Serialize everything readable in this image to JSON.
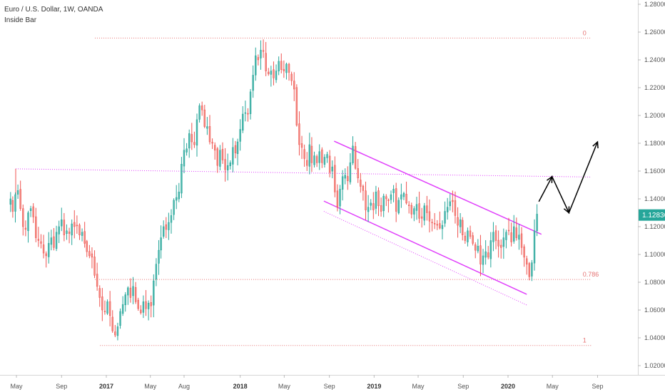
{
  "legend": {
    "title": "Euro / U.S. Dollar, 1W, OANDA",
    "indicator": "Inside Bar"
  },
  "colors": {
    "up": "#26a69a",
    "down": "#ef5350",
    "up_body": "#4db6ac",
    "down_body": "#f28b82",
    "channel": "#e040fb",
    "fib": "#e57373",
    "resistance": "#e040fb",
    "projection": "#000000",
    "price_tag": "#26a69a"
  },
  "chart_data": {
    "type": "candlestick",
    "title": "Euro / U.S. Dollar, 1W, OANDA",
    "x_range": [
      "2016-04-15",
      "2020-10-15"
    ],
    "y_range": [
      1.01,
      1.28
    ],
    "y_ticks": [
      "1.28000",
      "1.26000",
      "1.24000",
      "1.22000",
      "1.20000",
      "1.18000",
      "1.16000",
      "1.14000",
      "1.12000",
      "1.10000",
      "1.08000",
      "1.06000",
      "1.04000",
      "1.02000"
    ],
    "x_ticks": [
      {
        "date": "2016-05-01",
        "label": "May",
        "bold": false
      },
      {
        "date": "2016-09-01",
        "label": "Sep",
        "bold": false
      },
      {
        "date": "2017-01-01",
        "label": "2017",
        "bold": true
      },
      {
        "date": "2017-05-01",
        "label": "May",
        "bold": false
      },
      {
        "date": "2017-08-01",
        "label": "Aug",
        "bold": false
      },
      {
        "date": "2018-01-01",
        "label": "2018",
        "bold": true
      },
      {
        "date": "2018-05-01",
        "label": "May",
        "bold": false
      },
      {
        "date": "2018-09-01",
        "label": "Sep",
        "bold": false
      },
      {
        "date": "2019-01-01",
        "label": "2019",
        "bold": true
      },
      {
        "date": "2019-05-01",
        "label": "May",
        "bold": false
      },
      {
        "date": "2019-09-01",
        "label": "Sep",
        "bold": false
      },
      {
        "date": "2020-01-01",
        "label": "2020",
        "bold": true
      },
      {
        "date": "2020-05-01",
        "label": "May",
        "bold": false
      },
      {
        "date": "2020-09-01",
        "label": "Sep",
        "bold": false
      }
    ],
    "last_price": "1.12836",
    "last_price_value": 1.12836,
    "weekly_close_path": {
      "start_date": "2016-04-15",
      "end_date": "2020-03-20",
      "closes": [
        1.14,
        1.131,
        1.143,
        1.146,
        1.133,
        1.12,
        1.118,
        1.13,
        1.133,
        1.127,
        1.112,
        1.11,
        1.108,
        1.101,
        1.099,
        1.108,
        1.112,
        1.105,
        1.116,
        1.12,
        1.125,
        1.114,
        1.117,
        1.115,
        1.122,
        1.12,
        1.121,
        1.114,
        1.116,
        1.108,
        1.102,
        1.099,
        1.098,
        1.085,
        1.077,
        1.069,
        1.06,
        1.059,
        1.066,
        1.056,
        1.045,
        1.042,
        1.048,
        1.059,
        1.064,
        1.071,
        1.076,
        1.069,
        1.077,
        1.066,
        1.061,
        1.058,
        1.066,
        1.061,
        1.065,
        1.063,
        1.081,
        1.093,
        1.103,
        1.112,
        1.12,
        1.118,
        1.123,
        1.128,
        1.139,
        1.141,
        1.145,
        1.165,
        1.175,
        1.176,
        1.187,
        1.181,
        1.179,
        1.197,
        1.207,
        1.204,
        1.192,
        1.192,
        1.181,
        1.18,
        1.175,
        1.164,
        1.175,
        1.168,
        1.161,
        1.164,
        1.166,
        1.177,
        1.173,
        1.181,
        1.19,
        1.201,
        1.202,
        1.201,
        1.217,
        1.229,
        1.243,
        1.24,
        1.247,
        1.246,
        1.232,
        1.23,
        1.232,
        1.227,
        1.232,
        1.239,
        1.233,
        1.232,
        1.237,
        1.231,
        1.225,
        1.219,
        1.193,
        1.179,
        1.177,
        1.169,
        1.164,
        1.179,
        1.166,
        1.171,
        1.166,
        1.174,
        1.166,
        1.17,
        1.172,
        1.159,
        1.163,
        1.145,
        1.134,
        1.147,
        1.156,
        1.157,
        1.153,
        1.166,
        1.178,
        1.162,
        1.155,
        1.149,
        1.146,
        1.132,
        1.134,
        1.137,
        1.132,
        1.145,
        1.135,
        1.131,
        1.142,
        1.14,
        1.139,
        1.143,
        1.147,
        1.131,
        1.139,
        1.143,
        1.144,
        1.137,
        1.135,
        1.129,
        1.133,
        1.136,
        1.126,
        1.126,
        1.135,
        1.13,
        1.124,
        1.123,
        1.122,
        1.121,
        1.119,
        1.121,
        1.131,
        1.134,
        1.138,
        1.138,
        1.128,
        1.121,
        1.125,
        1.114,
        1.11,
        1.117,
        1.113,
        1.108,
        1.103,
        1.106,
        1.093,
        1.099,
        1.102,
        1.098,
        1.11,
        1.116,
        1.11,
        1.106,
        1.105,
        1.112,
        1.116,
        1.117,
        1.109,
        1.12,
        1.112,
        1.114,
        1.105,
        1.098,
        1.093,
        1.084,
        1.094,
        1.117,
        1.129
      ]
    },
    "fib_levels": [
      {
        "label": "0",
        "value": 1.2557,
        "start_date": "2016-12-01",
        "end_date": "2020-08-15"
      },
      {
        "label": "0.786",
        "value": 1.082,
        "start_date": "2016-12-01",
        "end_date": "2020-08-15"
      },
      {
        "label": "1",
        "value": 1.0345,
        "start_date": "2016-12-15",
        "end_date": "2020-08-15"
      }
    ],
    "resistance_line": {
      "start": {
        "date": "2016-04-29",
        "value": 1.1616
      },
      "end": {
        "date": "2020-08-15",
        "value": 1.1557
      }
    },
    "resistance_tick": {
      "date": "2016-04-29",
      "from": 1.1616,
      "to": 1.142
    },
    "channel_upper": {
      "start": {
        "date": "2018-09-14",
        "value": 1.1815
      },
      "end": {
        "date": "2020-04-01",
        "value": 1.1145
      }
    },
    "channel_lower": {
      "start": {
        "date": "2018-08-17",
        "value": 1.1384
      },
      "end": {
        "date": "2020-02-21",
        "value": 1.0713
      }
    },
    "channel_parallel": {
      "start": {
        "date": "2018-08-17",
        "value": 1.131
      },
      "end": {
        "date": "2020-02-21",
        "value": 1.0636
      }
    },
    "projection_path": [
      {
        "date": "2020-03-25",
        "value": 1.138
      },
      {
        "date": "2020-04-30",
        "value": 1.156
      },
      {
        "date": "2020-06-15",
        "value": 1.13
      },
      {
        "date": "2020-09-01",
        "value": 1.181
      }
    ]
  }
}
